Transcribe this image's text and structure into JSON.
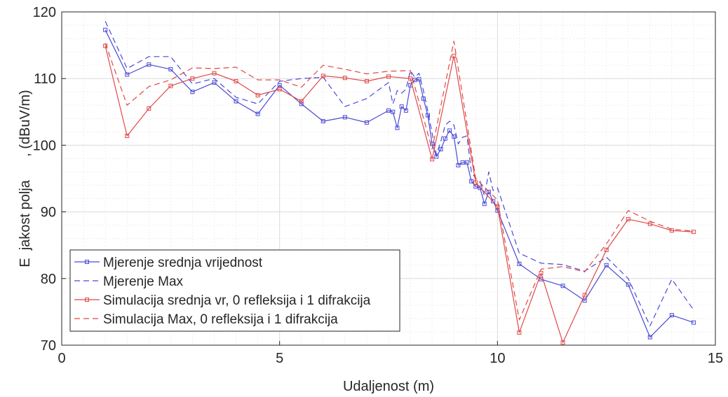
{
  "chart_data": {
    "type": "line",
    "xlabel": "Udaljenost  (m)",
    "ylabel": "E  jakost polja      , (dBuV/m)",
    "xlim": [
      0,
      15
    ],
    "ylim": [
      70,
      120
    ],
    "xticks": [
      0,
      5,
      10,
      15
    ],
    "yticks": [
      70,
      80,
      90,
      100,
      110,
      120
    ],
    "grid": true,
    "legend_position": "bottom-left",
    "series": [
      {
        "name": "Mjerenje srednja vrijednost",
        "color": "#4a4ad6",
        "style": "solid",
        "marker": "square",
        "x": [
          1,
          1.5,
          2,
          2.5,
          3,
          3.5,
          4,
          4.5,
          5,
          5.5,
          6,
          6.5,
          7,
          7.5,
          7.6,
          7.7,
          7.8,
          7.9,
          8,
          8.1,
          8.2,
          8.3,
          8.4,
          8.5,
          8.6,
          8.7,
          8.8,
          8.9,
          9,
          9.1,
          9.2,
          9.3,
          9.4,
          9.5,
          9.6,
          9.7,
          9.8,
          9.9,
          10,
          10.5,
          11,
          11.5,
          12,
          12.5,
          13,
          13.5,
          14,
          14.5
        ],
        "y": [
          117.3,
          110.6,
          112.1,
          111.4,
          108.0,
          109.4,
          106.6,
          104.7,
          109.0,
          106.2,
          103.6,
          104.2,
          103.4,
          105.2,
          105.0,
          102.6,
          105.8,
          105.2,
          109.0,
          109.8,
          109.9,
          107.0,
          104.5,
          100.2,
          98.3,
          99.4,
          101.0,
          102.2,
          101.3,
          97.0,
          97.4,
          97.4,
          94.6,
          93.8,
          93.6,
          91.2,
          93.0,
          91.6,
          90.2,
          82.2,
          79.9,
          78.9,
          76.7,
          82.0,
          79.1,
          71.2,
          74.5,
          73.4
        ]
      },
      {
        "name": "Mjerenje Max",
        "color": "#4a4ad6",
        "style": "dashed",
        "marker": "none",
        "x": [
          1,
          1.5,
          2,
          2.5,
          3,
          3.5,
          4,
          4.5,
          5,
          5.5,
          6,
          6.5,
          7,
          7.5,
          7.6,
          7.7,
          7.8,
          7.9,
          8,
          8.1,
          8.2,
          8.3,
          8.4,
          8.5,
          8.6,
          8.7,
          8.8,
          8.9,
          9,
          9.1,
          9.2,
          9.3,
          9.4,
          9.5,
          9.6,
          9.7,
          9.8,
          9.9,
          10,
          10.5,
          11,
          11.5,
          12,
          12.5,
          13,
          13.5,
          14,
          14.5
        ],
        "y": [
          118.6,
          111.5,
          113.3,
          113.3,
          109.2,
          110.0,
          107.2,
          106.2,
          109.6,
          110.0,
          110.2,
          105.8,
          107.0,
          109.4,
          106.2,
          108.2,
          107.8,
          108.4,
          111.2,
          110.2,
          110.8,
          108.2,
          105.2,
          101.8,
          98.6,
          100.6,
          103.0,
          103.6,
          103.0,
          100.2,
          101.2,
          101.4,
          96.0,
          95.0,
          94.6,
          92.4,
          96.0,
          93.2,
          93.6,
          83.8,
          82.3,
          82.1,
          81.1,
          83.2,
          80.0,
          72.9,
          79.9,
          75.3
        ]
      },
      {
        "name": "Simulacija srednja vr, 0 refleksija i 1 difrakcija",
        "color": "#e04848",
        "style": "solid",
        "marker": "square",
        "x": [
          1,
          1.5,
          2,
          2.5,
          3,
          3.5,
          4,
          4.5,
          5,
          5.5,
          6,
          6.5,
          7,
          7.5,
          8,
          8.5,
          9,
          9.5,
          10,
          10.5,
          11,
          11.5,
          12,
          12.5,
          13,
          13.5,
          14,
          14.5
        ],
        "y": [
          114.9,
          101.4,
          105.5,
          108.9,
          110.0,
          110.8,
          109.6,
          107.5,
          108.4,
          106.6,
          110.4,
          110.1,
          109.6,
          110.3,
          110.0,
          97.9,
          113.4,
          94.4,
          90.8,
          71.9,
          80.8,
          70.4,
          77.5,
          84.3,
          88.9,
          88.2,
          87.2,
          87.0
        ]
      },
      {
        "name": "Simulacija Max, 0 refleksija i 1 difrakcija",
        "color": "#e04848",
        "style": "dashed",
        "marker": "none",
        "x": [
          1,
          1.5,
          2,
          2.5,
          3,
          3.5,
          4,
          4.5,
          5,
          5.5,
          6,
          6.5,
          7,
          7.5,
          8,
          8.5,
          9,
          9.5,
          10,
          10.5,
          11,
          11.5,
          12,
          12.5,
          13,
          13.5,
          14,
          14.5
        ],
        "y": [
          115.3,
          106.0,
          108.8,
          109.8,
          111.6,
          111.5,
          111.7,
          109.8,
          109.8,
          108.7,
          112.0,
          111.4,
          110.7,
          111.1,
          111.2,
          99.4,
          115.6,
          95.0,
          91.8,
          73.8,
          81.4,
          81.8,
          81.0,
          85.2,
          90.2,
          88.6,
          87.4,
          87.1
        ]
      }
    ]
  }
}
